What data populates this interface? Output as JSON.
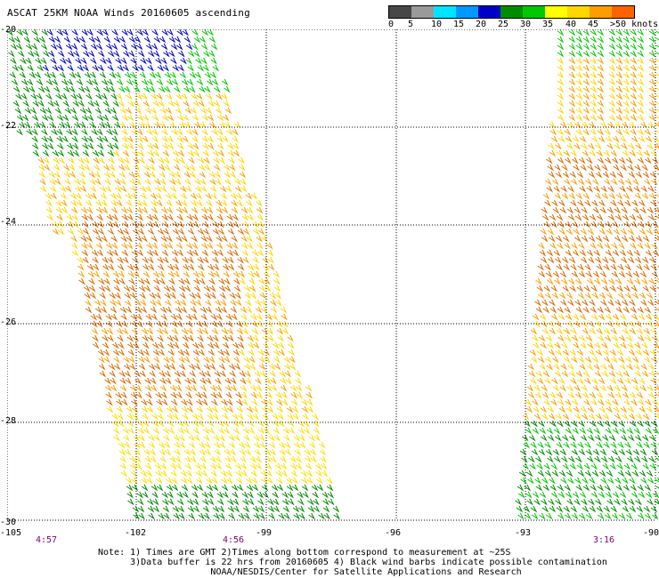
{
  "title": "ASCAT 25KM NOAA Winds 20160605 ascending",
  "legend": {
    "colors": [
      "#474747",
      "#9a9a9a",
      "#00e5ff",
      "#0099ff",
      "#0000c8",
      "#008c00",
      "#00c800",
      "#ffff00",
      "#ffd700",
      "#ff9d00",
      "#ff6200",
      "#ff0000",
      "#b40000",
      "#8c4614",
      "#b4641e",
      "#ff00ff",
      "#b400ff",
      "#6e00c8",
      "#32006e"
    ],
    "labels": [
      "0",
      "5",
      "10",
      "15",
      "20",
      "25",
      "30",
      "35",
      "40",
      "45",
      ">50 knots"
    ]
  },
  "map": {
    "lat_labels": [
      "-20",
      "-22",
      "-24",
      "-26",
      "-28",
      "-30"
    ],
    "lon_labels": [
      "-105",
      "-102",
      "-99",
      "-96",
      "-93",
      "-90"
    ],
    "time_labels": [
      "4:57",
      "4:56",
      "3:16"
    ]
  },
  "notes": [
    "Note: 1) Times are GMT 2)Times along bottom correspond to measurement at ~25S",
    "      3)Data buffer is 22 hrs from 20160605 4) Black wind barbs indicate possible contamination",
    "                     NOAA/NESDIS/Center for Satellite Applications and Research"
  ]
}
